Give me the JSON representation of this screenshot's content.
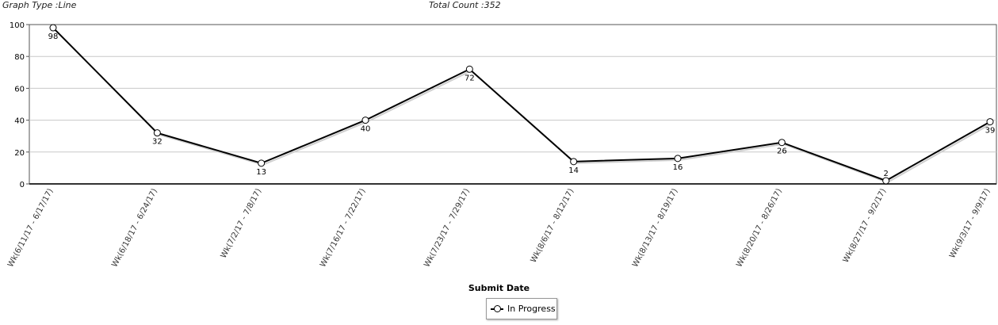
{
  "header": {
    "graph_type": "Graph Type :Line",
    "total_count": "Total Count :352"
  },
  "chart_data": {
    "type": "line",
    "categories": [
      "Wk(6/11/17 - 6/17/17)",
      "Wk(6/18/17 - 6/24/17)",
      "Wk(7/2/17 - 7/8/17)",
      "Wk(7/16/17 - 7/22/17)",
      "Wk(7/23/17 - 7/29/17)",
      "Wk(8/6/17 - 8/12/17)",
      "Wk(8/13/17 - 8/19/17)",
      "Wk(8/20/17 - 8/26/17)",
      "Wk(8/27/17 - 9/2/17)",
      "Wk(9/3/17 - 9/9/17)"
    ],
    "series": [
      {
        "name": "In Progress",
        "values": [
          98,
          32,
          13,
          40,
          72,
          14,
          16,
          26,
          2,
          39
        ]
      }
    ],
    "xlabel": "Submit Date",
    "ylabel": "",
    "ylim": [
      0,
      100
    ],
    "yticks": [
      0,
      20,
      40,
      60,
      80,
      100
    ],
    "grid": true,
    "legend_position": "bottom-center",
    "series_color": "#000000"
  }
}
